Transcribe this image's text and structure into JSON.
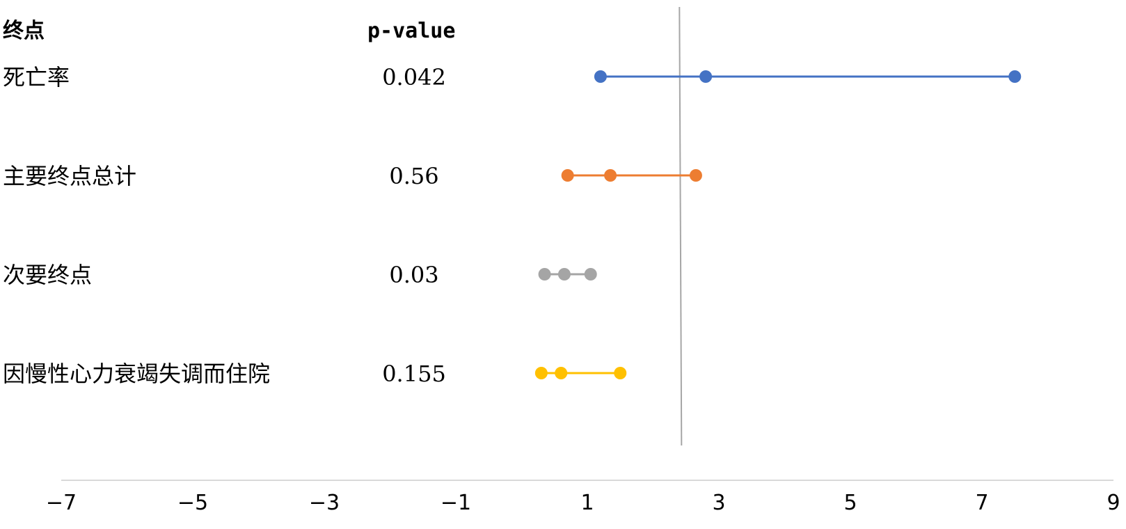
{
  "chart_data": {
    "type": "scatter",
    "headers": {
      "endpoint": "终点",
      "pvalue": "p-value"
    },
    "xlim": [
      -7,
      9
    ],
    "xticks": [
      -7,
      -5,
      -3,
      -1,
      1,
      3,
      5,
      7,
      9
    ],
    "xtick_labels": [
      "−7",
      "−5",
      "−3",
      "−1",
      "1",
      "3",
      "5",
      "7",
      "9"
    ],
    "reference_line_x": 2.4,
    "grid": false,
    "rows": [
      {
        "label": "死亡率",
        "pvalue": "0.042",
        "low": 1.2,
        "mid": 2.8,
        "high": 7.5,
        "color": "#4472C4"
      },
      {
        "label": "主要终点总计",
        "pvalue": "0.56",
        "low": 0.7,
        "mid": 1.35,
        "high": 2.65,
        "color": "#ED7D31"
      },
      {
        "label": "次要终点",
        "pvalue": "0.03",
        "low": 0.35,
        "mid": 0.65,
        "high": 1.05,
        "color": "#A5A5A5"
      },
      {
        "label": "因慢性心力衰竭失调而住院",
        "pvalue": "0.155",
        "low": 0.3,
        "mid": 0.6,
        "high": 1.5,
        "color": "#FFC000"
      }
    ]
  }
}
